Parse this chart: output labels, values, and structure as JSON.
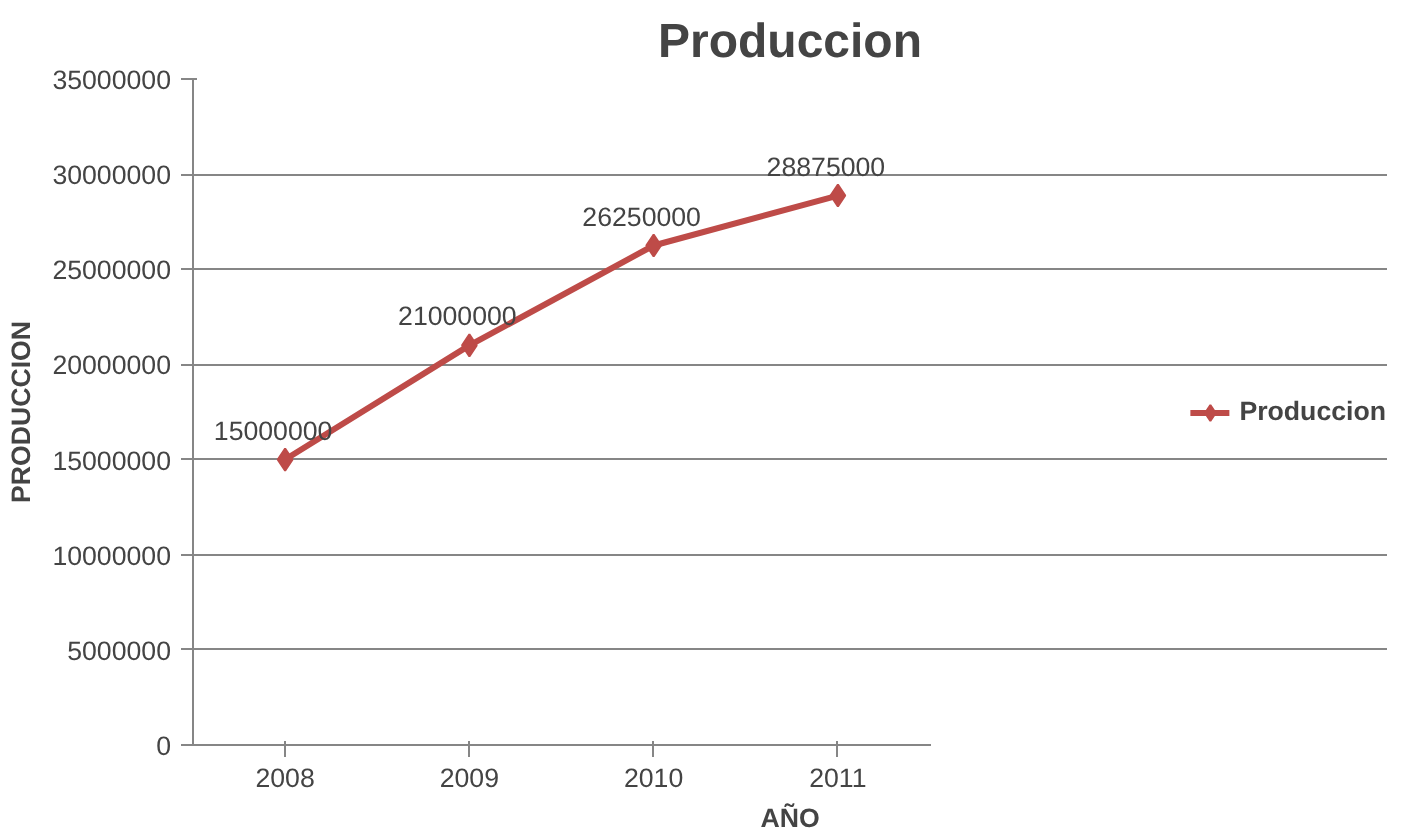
{
  "chart_data": {
    "type": "line",
    "title": "Produccion",
    "xlabel": "AÑO",
    "ylabel": "PRODUCCION",
    "categories": [
      "2008",
      "2009",
      "2010",
      "2011"
    ],
    "series": [
      {
        "name": "Produccion",
        "color": "#be4b48",
        "values": [
          15000000,
          21000000,
          26250000,
          28875000
        ]
      }
    ],
    "ylim": [
      0,
      35000000
    ],
    "yticks": [
      0,
      5000000,
      10000000,
      15000000,
      20000000,
      25000000,
      30000000,
      35000000
    ],
    "grid": "y",
    "legend": "right",
    "marker": "diamond",
    "line_style": "solid",
    "data_labels": true
  }
}
